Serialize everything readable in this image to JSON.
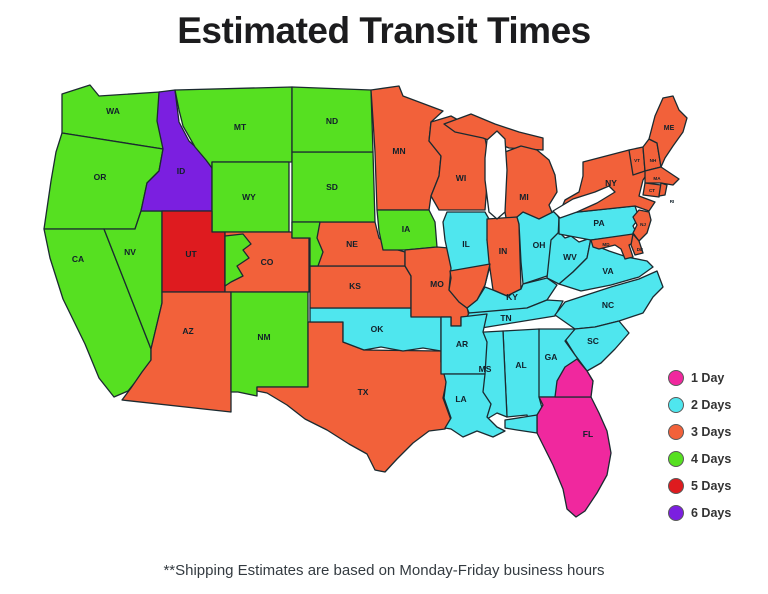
{
  "title": "Estimated Transit Times",
  "footnote": "**Shipping Estimates are based on  Monday-Friday business hours",
  "days_colors": {
    "1": "#F0289E",
    "2": "#4FE6EE",
    "3": "#F2613A",
    "4": "#56E021",
    "5": "#DE1B1F",
    "6": "#7B1FE0"
  },
  "legend": {
    "items": [
      {
        "label": "1 Day",
        "days": "1"
      },
      {
        "label": "2 Days",
        "days": "2"
      },
      {
        "label": "3 Days",
        "days": "3"
      },
      {
        "label": "4 Days",
        "days": "4"
      },
      {
        "label": "5 Days",
        "days": "5"
      },
      {
        "label": "6 Days",
        "days": "6"
      }
    ]
  },
  "map": {
    "states": [
      {
        "abbr": "WA",
        "days": "4"
      },
      {
        "abbr": "OR",
        "days": "4"
      },
      {
        "abbr": "CA",
        "days": "4"
      },
      {
        "abbr": "NV",
        "days": "4"
      },
      {
        "abbr": "ID",
        "days": "6"
      },
      {
        "abbr": "MT",
        "days": "4"
      },
      {
        "abbr": "WY",
        "days": "4"
      },
      {
        "abbr": "UT",
        "days": "5"
      },
      {
        "abbr": "CO",
        "days": "3"
      },
      {
        "abbr": "AZ",
        "days": "3"
      },
      {
        "abbr": "NM",
        "days": "4"
      },
      {
        "abbr": "TX",
        "days": "3"
      },
      {
        "abbr": "OK",
        "days": "2"
      },
      {
        "abbr": "KS",
        "days": "3"
      },
      {
        "abbr": "NE",
        "days": "3"
      },
      {
        "abbr": "SD",
        "days": "4"
      },
      {
        "abbr": "ND",
        "days": "4"
      },
      {
        "abbr": "MN",
        "days": "3"
      },
      {
        "abbr": "IA",
        "days": "4"
      },
      {
        "abbr": "MO",
        "days": "3"
      },
      {
        "abbr": "AR",
        "days": "2"
      },
      {
        "abbr": "LA",
        "days": "2"
      },
      {
        "abbr": "WI",
        "days": "3"
      },
      {
        "abbr": "MI",
        "days": "3"
      },
      {
        "abbr": "IL",
        "days": "2"
      },
      {
        "abbr": "IN",
        "days": "3"
      },
      {
        "abbr": "OH",
        "days": "2"
      },
      {
        "abbr": "KY",
        "days": "2"
      },
      {
        "abbr": "TN",
        "days": "2"
      },
      {
        "abbr": "WV",
        "days": "2"
      },
      {
        "abbr": "VA",
        "days": "2"
      },
      {
        "abbr": "NC",
        "days": "2"
      },
      {
        "abbr": "SC",
        "days": "2"
      },
      {
        "abbr": "GA",
        "days": "2"
      },
      {
        "abbr": "AL",
        "days": "2"
      },
      {
        "abbr": "MS",
        "days": "2"
      },
      {
        "abbr": "FL",
        "days": "1"
      },
      {
        "abbr": "PA",
        "days": "2"
      },
      {
        "abbr": "NY",
        "days": "3"
      },
      {
        "abbr": "NJ",
        "days": "3"
      },
      {
        "abbr": "MD",
        "days": "3"
      },
      {
        "abbr": "DE",
        "days": "3"
      },
      {
        "abbr": "VT",
        "days": "3"
      },
      {
        "abbr": "NH",
        "days": "3"
      },
      {
        "abbr": "ME",
        "days": "3"
      },
      {
        "abbr": "MA",
        "days": "3"
      },
      {
        "abbr": "CT",
        "days": "3"
      },
      {
        "abbr": "RI",
        "days": "3"
      }
    ],
    "split_regions": [
      {
        "key": "MI-UP",
        "state": "MI",
        "region": "upper peninsula",
        "days": "3"
      },
      {
        "key": "NE-W",
        "state": "NE",
        "region": "western strip",
        "days": "4"
      },
      {
        "key": "CO-W",
        "state": "CO",
        "region": "western patches",
        "days": "4"
      },
      {
        "key": "IL-S",
        "state": "IL",
        "region": "southern tip",
        "days": "3"
      },
      {
        "key": "GA-SE",
        "state": "GA",
        "region": "southeast coastal",
        "days": "1"
      },
      {
        "key": "FL-W",
        "state": "FL",
        "region": "western panhandle",
        "days": "2"
      }
    ]
  }
}
